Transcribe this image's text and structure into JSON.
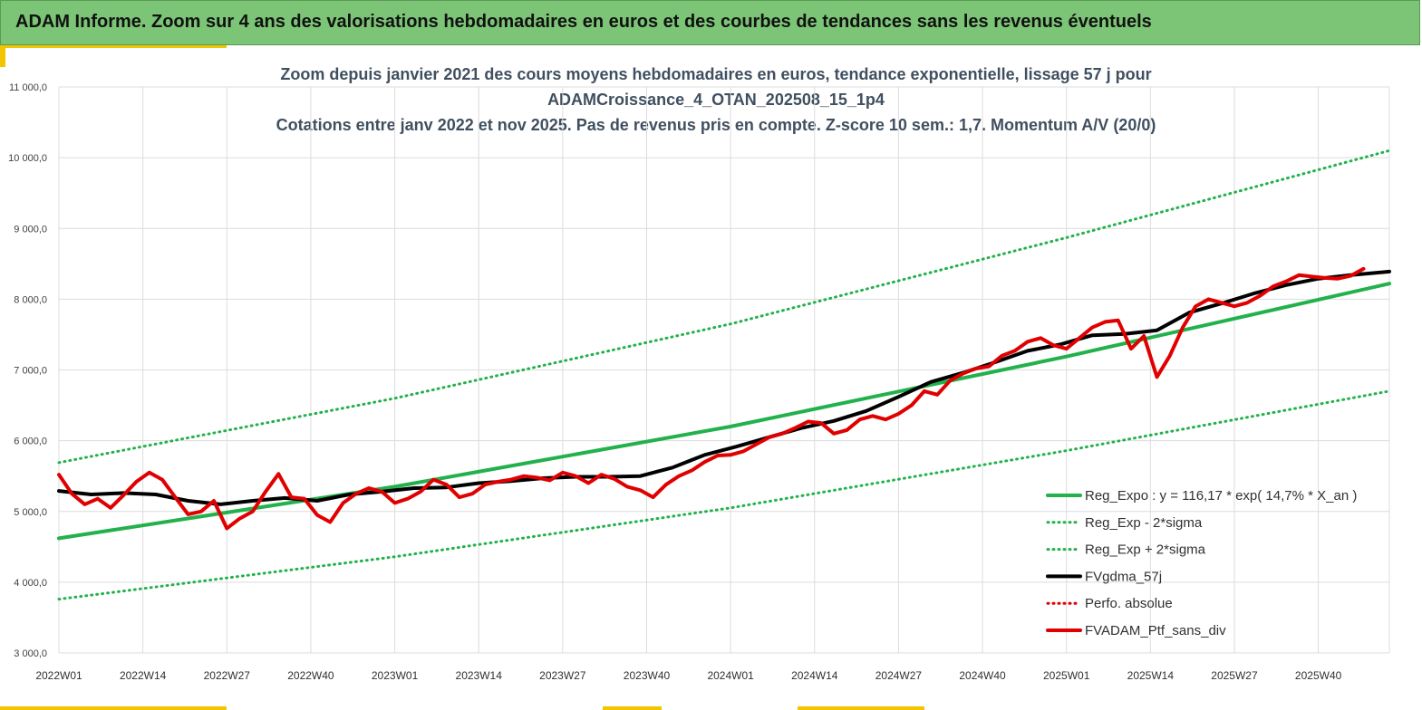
{
  "banner": {
    "title": "ADAM Informe. Zoom sur 4 ans des valorisations hebdomadaires en euros et des courbes de tendances sans les revenus éventuels"
  },
  "colors": {
    "banner_bg": "#7cc576",
    "accent": "#f3c500"
  },
  "chart_data": {
    "type": "line",
    "title_lines": [
      "Zoom depuis janvier 2021 des cours moyens hebdomadaires  en euros, tendance exponentielle, lissage 57 j pour",
      "ADAMCroissance_4_OTAN_202508_15_1p4",
      "Cotations  entre janv 2022 et nov 2025. Pas de revenus pris en compte. Z-score 10 sem.: 1,7. Momentum A/V (20/0)"
    ],
    "ylim": [
      3000,
      11000
    ],
    "y_ticks": [
      "3 000,0",
      "4 000,0",
      "5 000,0",
      "6 000,0",
      "7 000,0",
      "8 000,0",
      "9 000,0",
      "10 000,0",
      "11 000,0"
    ],
    "x_tick_labels": [
      "2022W01",
      "2022W14",
      "2022W27",
      "2022W40",
      "2023W01",
      "2023W14",
      "2023W27",
      "2023W40",
      "2024W01",
      "2024W14",
      "2024W27",
      "2024W40",
      "2025W01",
      "2025W14",
      "2025W27",
      "2025W40"
    ],
    "x_tick_index": [
      0,
      13,
      26,
      39,
      52,
      65,
      78,
      91,
      104,
      117,
      130,
      143,
      156,
      169,
      182,
      195
    ],
    "n_weeks": 206,
    "grid": true,
    "legend_position": "bottom-right",
    "series": [
      {
        "name": "Reg_Expo : y = 116,17 * exp( 14,7% *  X_an )",
        "color": "#22b14c",
        "style": "solid",
        "x": [
          0,
          52,
          104,
          156,
          206
        ],
        "values": [
          4620,
          5350,
          6200,
          7190,
          8220
        ]
      },
      {
        "name": "Reg_Exp - 2*sigma",
        "color": "#22b14c",
        "style": "dotted",
        "x": [
          0,
          52,
          104,
          156,
          206
        ],
        "values": [
          3760,
          4360,
          5050,
          5860,
          6700
        ]
      },
      {
        "name": "Reg_Exp + 2*sigma",
        "color": "#22b14c",
        "style": "dotted",
        "x": [
          0,
          52,
          104,
          156,
          206
        ],
        "values": [
          5690,
          6600,
          7650,
          8870,
          10100
        ]
      },
      {
        "name": "FVgdma_57j",
        "color": "#000000",
        "style": "solid",
        "x": [
          0,
          5,
          10,
          15,
          20,
          25,
          30,
          35,
          40,
          45,
          50,
          55,
          60,
          65,
          70,
          75,
          80,
          85,
          90,
          95,
          100,
          105,
          110,
          115,
          120,
          125,
          130,
          135,
          140,
          145,
          150,
          155,
          160,
          165,
          170,
          175,
          180,
          185,
          190,
          195,
          200,
          206
        ],
        "values": [
          5290,
          5240,
          5260,
          5240,
          5150,
          5100,
          5150,
          5190,
          5150,
          5240,
          5280,
          5330,
          5340,
          5400,
          5430,
          5470,
          5490,
          5490,
          5500,
          5620,
          5800,
          5920,
          6050,
          6180,
          6280,
          6420,
          6620,
          6830,
          6960,
          7110,
          7270,
          7360,
          7490,
          7510,
          7560,
          7810,
          7940,
          8080,
          8200,
          8290,
          8340,
          8390
        ]
      },
      {
        "name": "Perfo. absolue",
        "color": "#e00000",
        "style": "dotted",
        "x": [],
        "values": []
      },
      {
        "name": "FVADAM_Ptf_sans_div",
        "color": "#e00000",
        "style": "solid",
        "x": [
          0,
          2,
          4,
          6,
          8,
          10,
          12,
          14,
          16,
          18,
          20,
          22,
          24,
          26,
          28,
          30,
          32,
          34,
          36,
          38,
          40,
          42,
          44,
          46,
          48,
          50,
          52,
          54,
          56,
          58,
          60,
          62,
          64,
          66,
          68,
          70,
          72,
          74,
          76,
          78,
          80,
          82,
          84,
          86,
          88,
          90,
          92,
          94,
          96,
          98,
          100,
          102,
          104,
          106,
          108,
          110,
          112,
          114,
          116,
          118,
          120,
          122,
          124,
          126,
          128,
          130,
          132,
          134,
          136,
          138,
          140,
          142,
          144,
          146,
          148,
          150,
          152,
          154,
          156,
          158,
          160,
          162,
          164,
          166,
          168,
          170,
          172,
          174,
          176,
          178,
          180,
          182,
          184,
          186,
          188,
          190,
          192,
          194,
          196,
          198,
          200,
          202
        ],
        "values": [
          5520,
          5250,
          5100,
          5180,
          5050,
          5230,
          5420,
          5550,
          5450,
          5200,
          4960,
          5000,
          5150,
          4760,
          4900,
          5000,
          5280,
          5530,
          5200,
          5180,
          4950,
          4850,
          5120,
          5250,
          5330,
          5280,
          5120,
          5180,
          5280,
          5450,
          5380,
          5200,
          5250,
          5380,
          5420,
          5450,
          5500,
          5480,
          5440,
          5550,
          5500,
          5400,
          5520,
          5460,
          5350,
          5300,
          5200,
          5380,
          5500,
          5580,
          5700,
          5790,
          5800,
          5850,
          5950,
          6050,
          6100,
          6180,
          6270,
          6250,
          6100,
          6150,
          6300,
          6350,
          6300,
          6380,
          6500,
          6700,
          6650,
          6850,
          6950,
          7020,
          7050,
          7200,
          7270,
          7400,
          7450,
          7350,
          7300,
          7450,
          7600,
          7680,
          7700,
          7300,
          7480,
          6900,
          7200,
          7600,
          7900,
          8000,
          7950,
          7900,
          7950,
          8050,
          8180,
          8250,
          8340,
          8320,
          8300,
          8290,
          8330,
          8430
        ]
      }
    ]
  }
}
